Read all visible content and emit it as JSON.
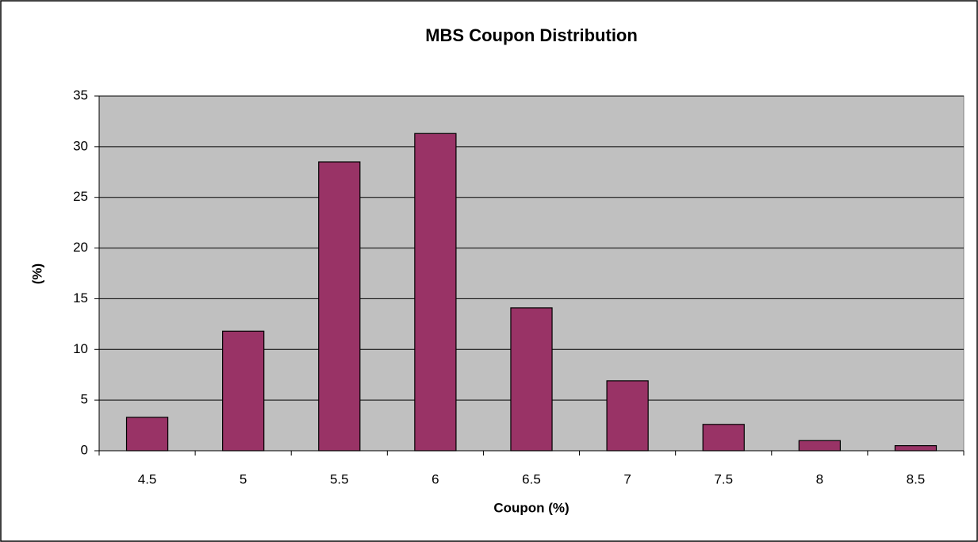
{
  "chart_data": {
    "type": "bar",
    "title": "MBS Coupon Distribution",
    "x_label": "Coupon (%)",
    "y_label": "(%)",
    "categories": [
      "4.5",
      "5",
      "5.5",
      "6",
      "6.5",
      "7",
      "7.5",
      "8",
      "8.5"
    ],
    "values": [
      3.3,
      11.8,
      28.5,
      31.3,
      14.1,
      6.9,
      2.6,
      1.0,
      0.5
    ],
    "color": "#993366",
    "ylim": [
      0,
      35
    ],
    "yticks": [
      0,
      5,
      10,
      15,
      20,
      25,
      30,
      35
    ],
    "grid": true
  }
}
